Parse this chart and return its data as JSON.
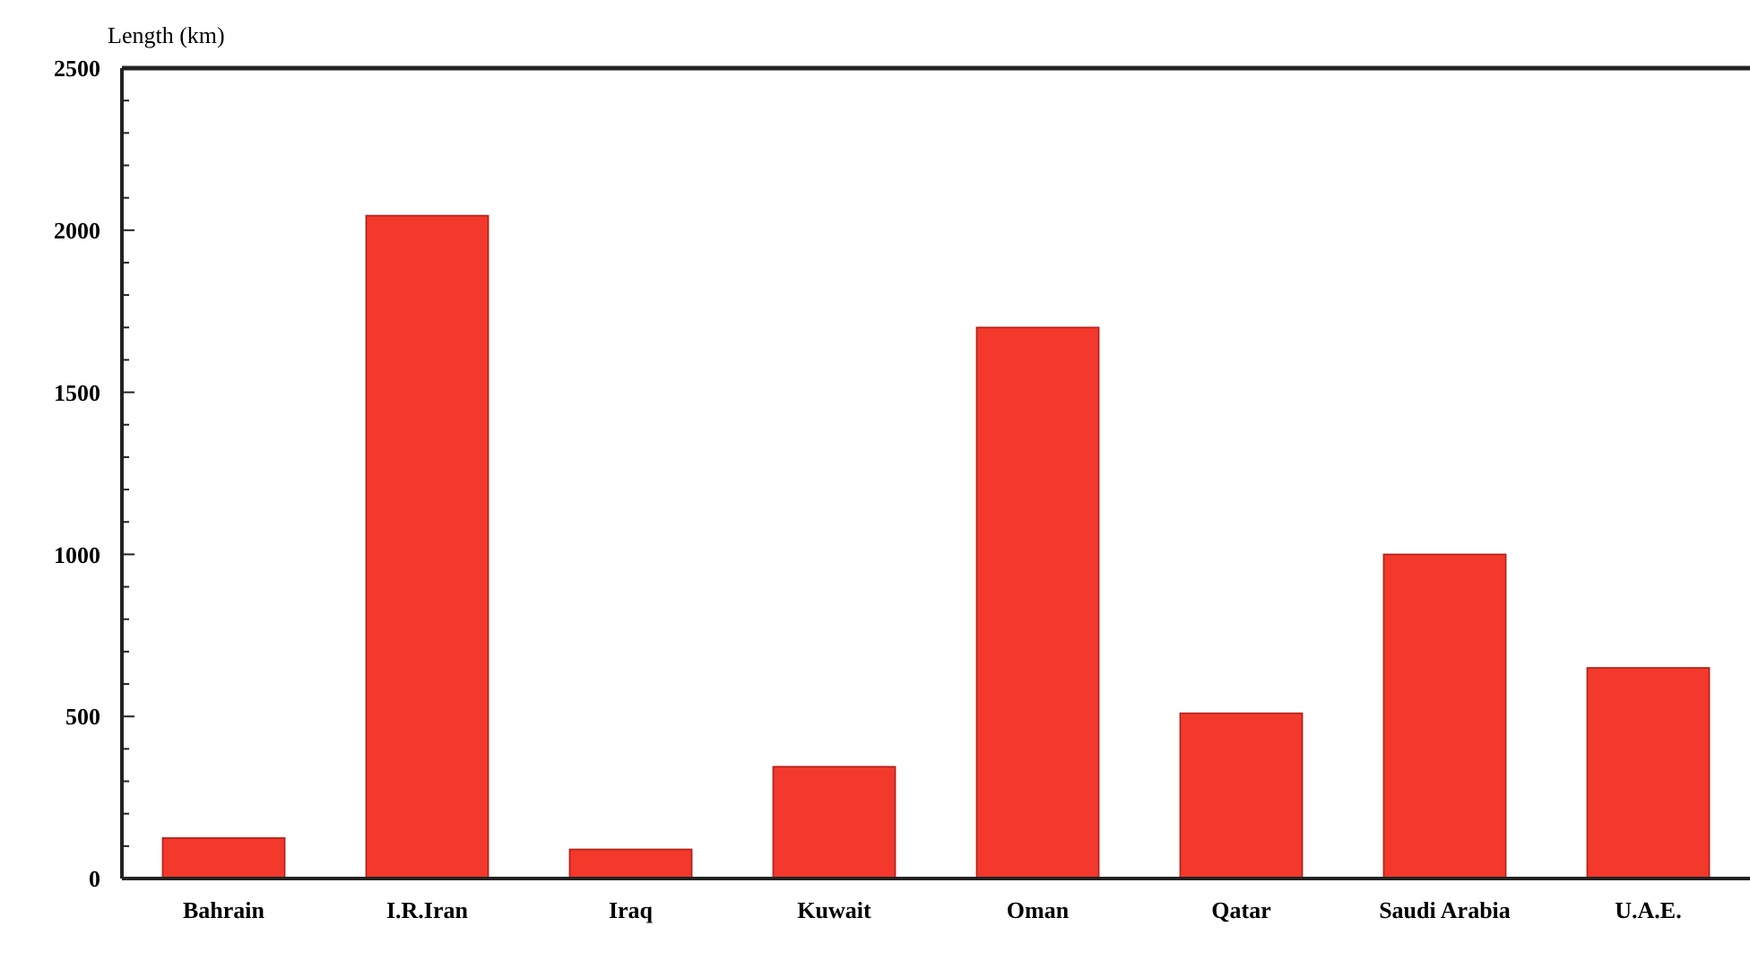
{
  "chart_data": {
    "type": "bar",
    "ylabel": "Length (km)",
    "categories": [
      "Bahrain",
      "I.R.Iran",
      "Iraq",
      "Kuwait",
      "Oman",
      "Qatar",
      "Saudi Arabia",
      "U.A.E."
    ],
    "values": [
      125,
      2045,
      90,
      345,
      1700,
      510,
      1000,
      650
    ],
    "color": "#f2392c",
    "ylim": [
      0,
      2500
    ],
    "yticks": [
      0,
      {
        "value": 100,
        "label": null
      },
      {
        "value": 200,
        "label": null
      },
      {
        "value": 300,
        "label": null
      },
      {
        "value": 400,
        "label": null
      },
      500,
      {
        "value": 600,
        "label": null
      },
      {
        "value": 700,
        "label": null
      },
      {
        "value": 800,
        "label": null
      },
      {
        "value": 900,
        "label": null
      },
      1000,
      {
        "value": 1100,
        "label": null
      },
      {
        "value": 1200,
        "label": null
      },
      {
        "value": 1300,
        "label": null
      },
      {
        "value": 1400,
        "label": null
      },
      1500,
      {
        "value": 1600,
        "label": null
      },
      {
        "value": 1700,
        "label": null
      },
      {
        "value": 1800,
        "label": null
      },
      {
        "value": 1900,
        "label": null
      },
      2000,
      {
        "value": 2100,
        "label": null
      },
      {
        "value": 2200,
        "label": null
      },
      {
        "value": 2300,
        "label": null
      },
      {
        "value": 2400,
        "label": null
      },
      2500
    ],
    "grid": false
  }
}
